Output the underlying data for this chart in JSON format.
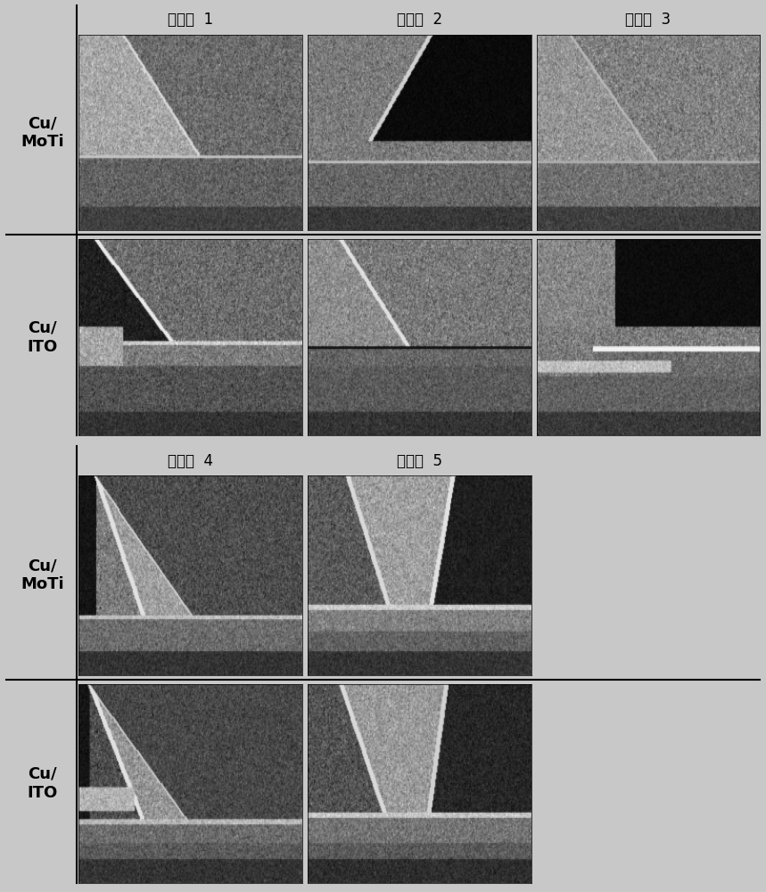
{
  "background_color": "#c8c8c8",
  "outer_bg": "#c8c8c8",
  "top_group": {
    "col_labels": [
      "比較例  1",
      "比較例  2",
      "比較例  3"
    ],
    "row_labels": [
      "Cu/\nMoTi",
      "Cu/\nITO"
    ]
  },
  "bottom_group": {
    "col_labels": [
      "比較例  4",
      "比較例  5"
    ],
    "row_labels": [
      "Cu/\nMoTi",
      "Cu/\nITO"
    ]
  },
  "label_fontsize": 16,
  "col_label_fontsize": 13,
  "border_color": "#000000",
  "label_bg": "#ffffff",
  "white_bg": "#f0f0f0"
}
